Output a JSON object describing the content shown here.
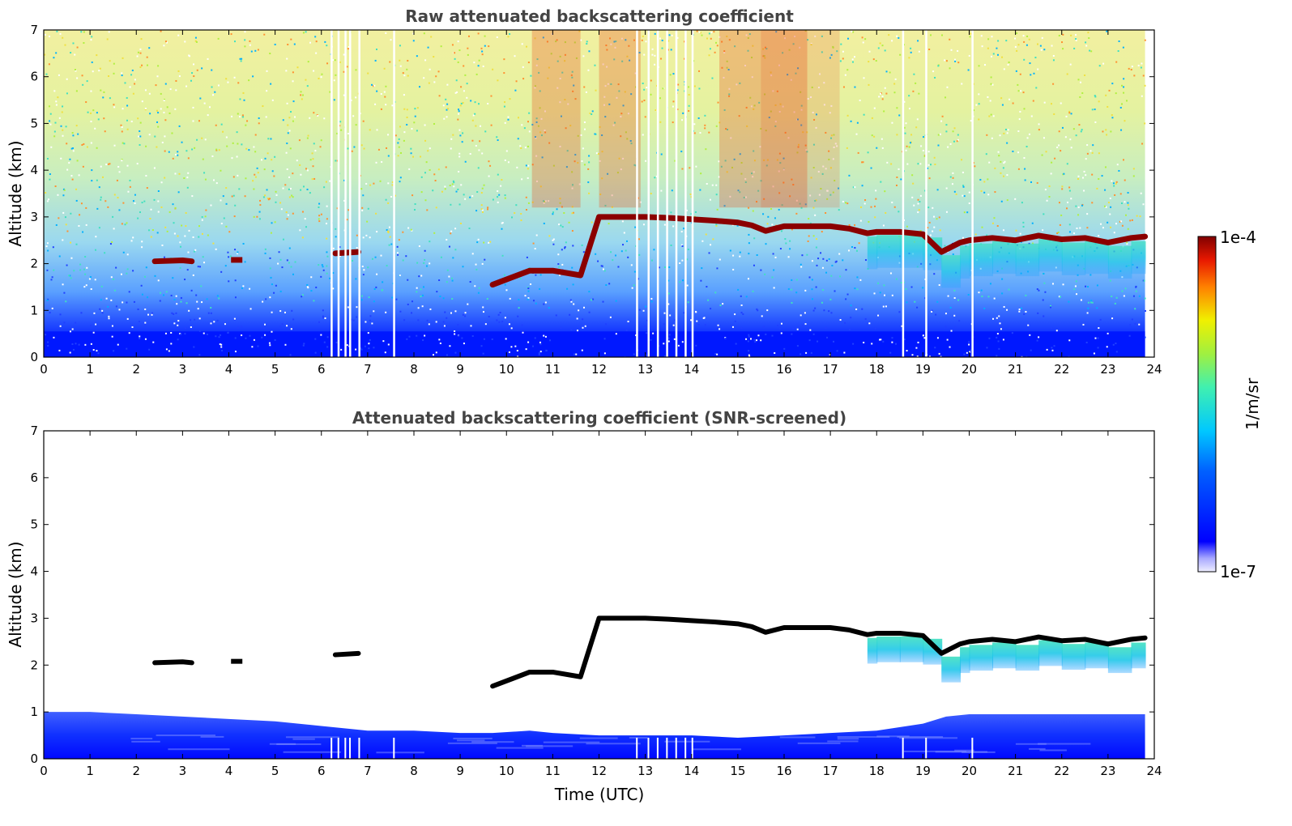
{
  "chart_data": [
    {
      "type": "heatmap",
      "title": "Raw attenuated backscattering coefficient",
      "xlabel": "",
      "ylabel": "Altitude (km)",
      "xlim": [
        0,
        24
      ],
      "ylim": [
        0,
        7
      ],
      "xticks": [
        "0",
        "1",
        "2",
        "3",
        "4",
        "5",
        "6",
        "7",
        "8",
        "9",
        "10",
        "11",
        "12",
        "13",
        "14",
        "15",
        "16",
        "17",
        "18",
        "19",
        "20",
        "21",
        "22",
        "23",
        "24"
      ],
      "yticks": [
        "0",
        "1",
        "2",
        "3",
        "4",
        "5",
        "6",
        "7"
      ],
      "data_end_time": 23.8,
      "cloud_layer": {
        "x": [
          2.4,
          3.0,
          3.2,
          3.6,
          4.1,
          6.3,
          6.8,
          9.7,
          10.5,
          11.0,
          11.6,
          12.0,
          12.5,
          13.0,
          13.5,
          14.0,
          14.5,
          15.0,
          15.3,
          15.6,
          16.0,
          16.5,
          17.0,
          17.4,
          17.8,
          18.0,
          18.5,
          19.0,
          19.4,
          19.8,
          20.0,
          20.5,
          21.0,
          21.5,
          22.0,
          22.5,
          23.0,
          23.5,
          23.8
        ],
        "y": [
          2.05,
          2.07,
          2.05,
          null,
          2.08,
          2.22,
          2.25,
          1.55,
          1.85,
          1.85,
          1.75,
          3.0,
          3.0,
          3.0,
          2.98,
          2.95,
          2.92,
          2.88,
          2.82,
          2.7,
          2.8,
          2.8,
          2.8,
          2.75,
          2.65,
          2.68,
          2.68,
          2.63,
          2.25,
          2.45,
          2.5,
          2.55,
          2.5,
          2.6,
          2.52,
          2.55,
          2.45,
          2.55,
          2.58
        ]
      },
      "data_gaps_x": [
        6.2,
        6.35,
        6.5,
        6.6,
        6.8,
        7.55,
        12.8,
        13.05,
        13.25,
        13.45,
        13.65,
        13.85,
        14.0,
        18.55,
        19.05,
        20.05
      ]
    },
    {
      "type": "heatmap",
      "title": "Attenuated backscattering coefficient (SNR-screened)",
      "xlabel": "Time (UTC)",
      "ylabel": "Altitude (km)",
      "xlim": [
        0,
        24
      ],
      "ylim": [
        0,
        7
      ],
      "xticks": [
        "0",
        "1",
        "2",
        "3",
        "4",
        "5",
        "6",
        "7",
        "8",
        "9",
        "10",
        "11",
        "12",
        "13",
        "14",
        "15",
        "16",
        "17",
        "18",
        "19",
        "20",
        "21",
        "22",
        "23",
        "24"
      ],
      "yticks": [
        "0",
        "1",
        "2",
        "3",
        "4",
        "5",
        "6",
        "7"
      ],
      "data_end_time": 23.8,
      "boundary_layer_top": {
        "x": [
          0,
          1,
          2,
          3,
          4,
          5,
          6,
          7,
          8,
          9,
          9.7,
          10.5,
          11,
          12,
          13,
          14,
          15,
          16,
          17,
          18,
          19,
          19.5,
          20,
          21,
          22,
          23,
          23.8
        ],
        "y": [
          1.0,
          1.0,
          0.95,
          0.9,
          0.85,
          0.8,
          0.7,
          0.6,
          0.6,
          0.55,
          0.55,
          0.6,
          0.55,
          0.5,
          0.5,
          0.5,
          0.45,
          0.5,
          0.55,
          0.6,
          0.75,
          0.9,
          0.95,
          0.95,
          0.95,
          0.95,
          0.95
        ]
      }
    }
  ],
  "colorbar": {
    "label": "1/m/sr",
    "max_label": "1e-4",
    "min_label": "1e-7",
    "colormap": "jet"
  },
  "colors": {
    "title": "#444444",
    "layer_raw": "#8b0000",
    "layer_screened": "#000000",
    "boundary_layer": "#0000ff",
    "noise_low": "#3050ff",
    "noise_high": "#e04020"
  }
}
